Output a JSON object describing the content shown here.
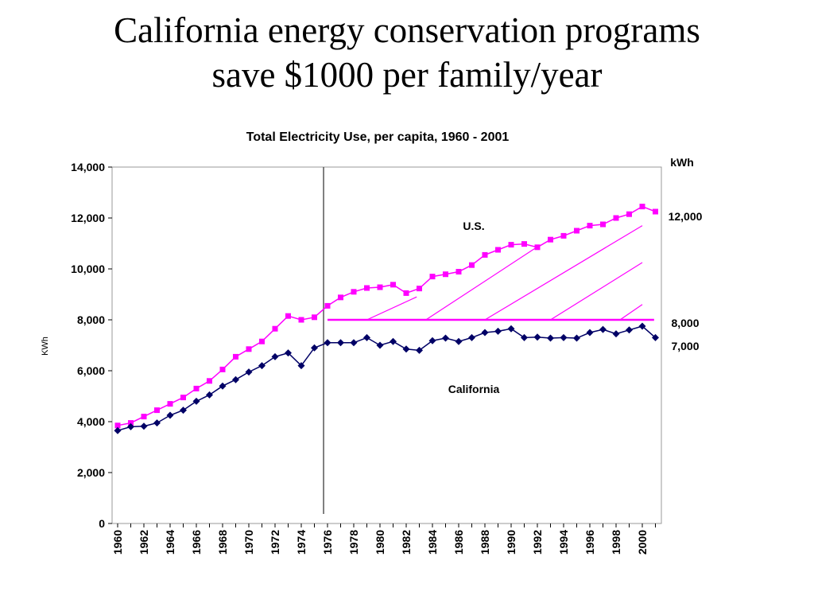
{
  "slide": {
    "title_line1": "California energy conservation programs",
    "title_line2": "save $1000 per family/year"
  },
  "colors": {
    "us": "#ff00ff",
    "california": "#000066",
    "divider": "#555555"
  },
  "chart_data": {
    "type": "line",
    "title": "Total Electricity Use,  per capita, 1960 - 2001",
    "ylabel": "KWh",
    "xlabel": "",
    "ylim": [
      0,
      14000
    ],
    "y_ticks": [
      "0",
      "2,000",
      "4,000",
      "6,000",
      "8,000",
      "10,000",
      "12,000",
      "14,000"
    ],
    "x_tick_labels": [
      "1960",
      "1962",
      "1964",
      "1966",
      "1968",
      "1970",
      "1972",
      "1974",
      "1976",
      "1978",
      "1980",
      "1982",
      "1984",
      "1986",
      "1988",
      "1990",
      "1992",
      "1994",
      "1996",
      "1998",
      "2000"
    ],
    "x": [
      1960,
      1961,
      1962,
      1963,
      1964,
      1965,
      1966,
      1967,
      1968,
      1969,
      1970,
      1971,
      1972,
      1973,
      1974,
      1975,
      1976,
      1977,
      1978,
      1979,
      1980,
      1981,
      1982,
      1983,
      1984,
      1985,
      1986,
      1987,
      1988,
      1989,
      1990,
      1991,
      1992,
      1993,
      1994,
      1995,
      1996,
      1997,
      1998,
      1999,
      2000,
      2001
    ],
    "series": [
      {
        "name": "U.S.",
        "marker": "square",
        "values": [
          3850,
          3950,
          4200,
          4450,
          4700,
          4950,
          5300,
          5600,
          6050,
          6550,
          6850,
          7150,
          7650,
          8150,
          8000,
          8100,
          8550,
          8880,
          9100,
          9250,
          9280,
          9380,
          9050,
          9230,
          9700,
          9790,
          9890,
          10150,
          10550,
          10750,
          10950,
          10980,
          10850,
          11150,
          11300,
          11500,
          11700,
          11750,
          12000,
          12150,
          12450,
          12250
        ]
      },
      {
        "name": "California",
        "marker": "diamond",
        "values": [
          3650,
          3800,
          3820,
          3950,
          4250,
          4450,
          4800,
          5050,
          5400,
          5650,
          5950,
          6200,
          6550,
          6700,
          6200,
          6900,
          7100,
          7100,
          7100,
          7300,
          7000,
          7150,
          6850,
          6800,
          7180,
          7280,
          7150,
          7300,
          7500,
          7550,
          7650,
          7300,
          7320,
          7280,
          7300,
          7280,
          7500,
          7620,
          7450,
          7600,
          7750,
          7300
        ]
      }
    ],
    "reference_line": {
      "value": 8000,
      "x_start": 1976,
      "x_end": 2001
    },
    "divider_year": 1975.7,
    "annotations": {
      "us_label": "U.S.",
      "california_label": "California",
      "right_unit": "kWh",
      "right_12000": "12,000",
      "right_8000": "8,000",
      "right_7000": "7,000"
    }
  }
}
